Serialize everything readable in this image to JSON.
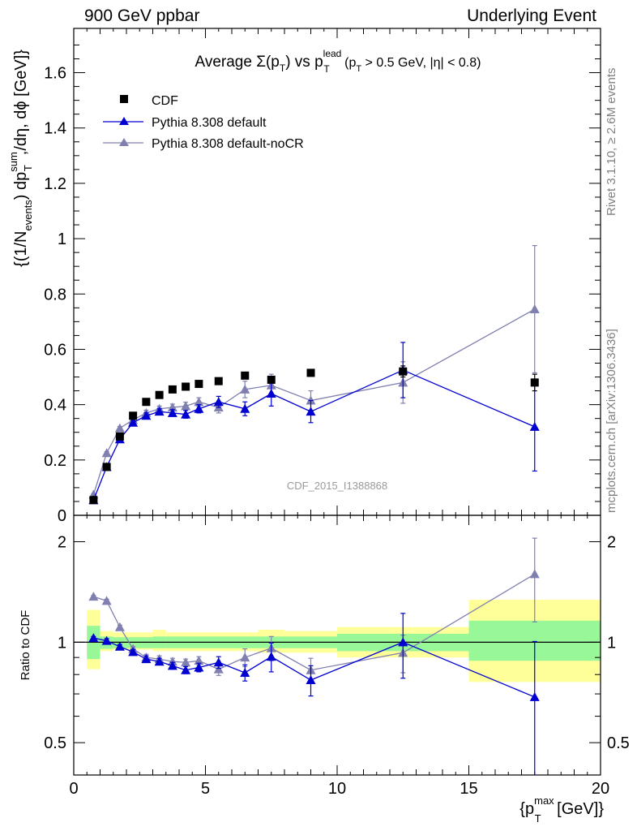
{
  "header": {
    "left": "900 GeV ppbar",
    "right": "Underlying Event"
  },
  "side_labels": {
    "rivet": "Rivet 3.1.10, ≥ 2.6M events",
    "mcplots": "mcplots.cern.ch [arXiv:1306.3436]"
  },
  "colors": {
    "cdf": "#000000",
    "pythia_default": "#0000d0",
    "pythia_nocr": "#8080b0",
    "band_stat": "#98f898",
    "band_total": "#ffff99"
  },
  "chart_data": [
    {
      "type": "scatter",
      "title": "Average Σ(pT) vs pT^lead (pT > 0.5 GeV, |η| < 0.8)",
      "title_parts": {
        "a": "Average ",
        "b": "Σ(p",
        "c": "T",
        "d": ") vs p",
        "e": "lead",
        "f": "T",
        "g": " (p",
        "h": "T",
        "i": " > 0.5 GeV, |η| < 0.8)"
      },
      "ylabel": "{(1/N_events) dp_T^sum/dη, dϕ [GeV]}",
      "ylabel_parts": {
        "a": "{(1/N",
        "b": "events",
        "c": ") dp",
        "d": "sum",
        "e": "T",
        "f": ",/dη, dϕ [GeV]}"
      },
      "watermark": "CDF_2015_I1388868",
      "xlim": [
        0,
        20
      ],
      "ylim": [
        0,
        1.76
      ],
      "y_ticks": [
        0,
        0.2,
        0.4,
        0.6,
        0.8,
        1,
        1.2,
        1.4,
        1.6
      ],
      "y_tick_labels": [
        "0",
        "0.2",
        "0.4",
        "0.6",
        "0.8",
        "1",
        "1.2",
        "1.4",
        "1.6"
      ],
      "legend_position": "top-left",
      "series": [
        {
          "name": "CDF",
          "marker": "square",
          "x": [
            0.75,
            1.25,
            1.75,
            2.25,
            2.75,
            3.25,
            3.75,
            4.25,
            4.75,
            5.5,
            6.5,
            7.5,
            9.0,
            12.5,
            17.5
          ],
          "y": [
            0.055,
            0.175,
            0.285,
            0.36,
            0.41,
            0.435,
            0.455,
            0.465,
            0.475,
            0.485,
            0.505,
            0.49,
            0.515,
            0.52,
            0.48
          ],
          "err": [
            0.004,
            0.006,
            0.008,
            0.008,
            0.008,
            0.008,
            0.008,
            0.008,
            0.008,
            0.008,
            0.01,
            0.01,
            0.012,
            0.02,
            0.03
          ]
        },
        {
          "name": "Pythia 8.308 default",
          "marker": "triangle",
          "x": [
            0.75,
            1.25,
            1.75,
            2.25,
            2.75,
            3.25,
            3.75,
            4.25,
            4.75,
            5.5,
            6.5,
            7.5,
            9.0,
            12.5,
            17.5
          ],
          "y": [
            0.055,
            0.175,
            0.275,
            0.335,
            0.36,
            0.375,
            0.37,
            0.365,
            0.385,
            0.41,
            0.385,
            0.44,
            0.375,
            0.525,
            0.32
          ],
          "err": [
            0.003,
            0.005,
            0.006,
            0.008,
            0.01,
            0.01,
            0.012,
            0.014,
            0.015,
            0.02,
            0.025,
            0.045,
            0.04,
            0.1,
            0.16
          ]
        },
        {
          "name": "Pythia 8.308 default-noCR",
          "marker": "triangle",
          "x": [
            0.75,
            1.25,
            1.75,
            2.25,
            2.75,
            3.25,
            3.75,
            4.25,
            4.75,
            5.5,
            6.5,
            7.5,
            9.0,
            12.5,
            17.5
          ],
          "y": [
            0.075,
            0.225,
            0.315,
            0.345,
            0.37,
            0.385,
            0.39,
            0.395,
            0.41,
            0.39,
            0.455,
            0.47,
            0.415,
            0.48,
            0.745
          ],
          "err": [
            0.003,
            0.005,
            0.006,
            0.008,
            0.01,
            0.01,
            0.012,
            0.014,
            0.015,
            0.02,
            0.03,
            0.04,
            0.035,
            0.075,
            0.23
          ]
        }
      ]
    },
    {
      "type": "scatter",
      "ylabel": "Ratio to CDF",
      "xlabel": "{p_T^max [GeV]}",
      "xlabel_parts": {
        "a": "{p",
        "b": "max",
        "c": "T",
        "d": " [GeV]}"
      },
      "xlim": [
        0,
        20
      ],
      "ylim": [
        0.4,
        2.4
      ],
      "y_scale": "log",
      "x_ticks": [
        0,
        5,
        10,
        15,
        20
      ],
      "x_tick_labels": [
        "0",
        "5",
        "10",
        "15",
        "20"
      ],
      "y_ticks": [
        0.5,
        1,
        2
      ],
      "y_tick_labels": [
        "0.5",
        "1",
        "2"
      ],
      "bands": [
        {
          "xlo": 0.5,
          "xhi": 1.0,
          "stat_lo": 0.89,
          "stat_hi": 1.12,
          "tot_lo": 0.83,
          "tot_hi": 1.25
        },
        {
          "xlo": 1.0,
          "xhi": 1.5,
          "stat_lo": 0.955,
          "stat_hi": 1.04,
          "tot_lo": 0.94,
          "tot_hi": 1.08
        },
        {
          "xlo": 1.5,
          "xhi": 3.0,
          "stat_lo": 0.96,
          "stat_hi": 1.035,
          "tot_lo": 0.95,
          "tot_hi": 1.07
        },
        {
          "xlo": 3.0,
          "xhi": 3.5,
          "stat_lo": 0.96,
          "stat_hi": 1.04,
          "tot_lo": 0.94,
          "tot_hi": 1.09
        },
        {
          "xlo": 3.5,
          "xhi": 7.0,
          "stat_lo": 0.96,
          "stat_hi": 1.04,
          "tot_lo": 0.94,
          "tot_hi": 1.07
        },
        {
          "xlo": 7.0,
          "xhi": 8.0,
          "stat_lo": 0.96,
          "stat_hi": 1.04,
          "tot_lo": 0.93,
          "tot_hi": 1.09
        },
        {
          "xlo": 8.0,
          "xhi": 10.0,
          "stat_lo": 0.96,
          "stat_hi": 1.04,
          "tot_lo": 0.93,
          "tot_hi": 1.08
        },
        {
          "xlo": 10.0,
          "xhi": 15.0,
          "stat_lo": 0.94,
          "stat_hi": 1.06,
          "tot_lo": 0.9,
          "tot_hi": 1.11
        },
        {
          "xlo": 15.0,
          "xhi": 20.0,
          "stat_lo": 0.88,
          "stat_hi": 1.16,
          "tot_lo": 0.76,
          "tot_hi": 1.34
        }
      ],
      "series": [
        {
          "name": "Pythia 8.308 default",
          "marker": "triangle",
          "x": [
            0.75,
            1.25,
            1.75,
            2.25,
            2.75,
            3.25,
            3.75,
            4.25,
            4.75,
            5.5,
            6.5,
            7.5,
            9.0,
            12.5,
            17.5
          ],
          "y": [
            1.03,
            1.01,
            0.97,
            0.935,
            0.89,
            0.875,
            0.85,
            0.825,
            0.84,
            0.87,
            0.81,
            0.905,
            0.77,
            1.0,
            0.685
          ],
          "err": [
            0.01,
            0.015,
            0.015,
            0.015,
            0.02,
            0.02,
            0.02,
            0.02,
            0.025,
            0.035,
            0.045,
            0.09,
            0.08,
            0.22,
            0.32
          ]
        },
        {
          "name": "Pythia 8.308 default-noCR",
          "marker": "triangle",
          "x": [
            0.75,
            1.25,
            1.75,
            2.25,
            2.75,
            3.25,
            3.75,
            4.25,
            4.75,
            5.5,
            6.5,
            7.5,
            9.0,
            12.5,
            17.5
          ],
          "y": [
            1.37,
            1.33,
            1.11,
            0.955,
            0.9,
            0.89,
            0.875,
            0.87,
            0.88,
            0.83,
            0.9,
            0.96,
            0.825,
            0.93,
            1.6
          ],
          "err": [
            0.01,
            0.015,
            0.015,
            0.015,
            0.02,
            0.02,
            0.02,
            0.02,
            0.025,
            0.035,
            0.055,
            0.08,
            0.07,
            0.12,
            0.45
          ]
        }
      ]
    }
  ]
}
